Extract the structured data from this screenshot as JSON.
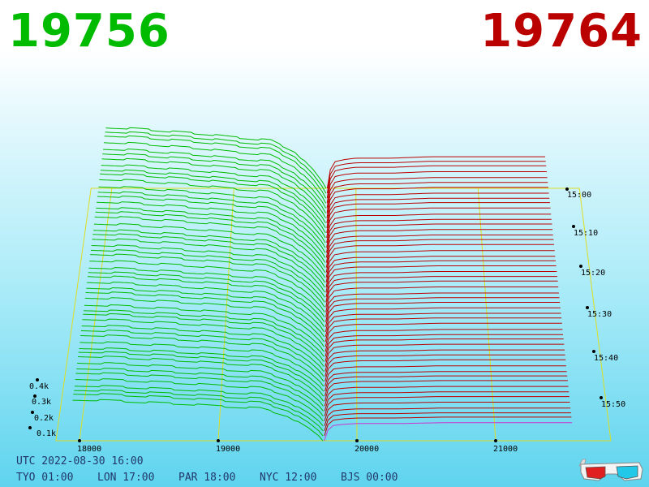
{
  "header": {
    "bid_price": "19756",
    "ask_price": "19764",
    "bid_color": "#00bb00",
    "ask_color": "#bb0000"
  },
  "footer": {
    "utc_label": "UTC 2022-08-30 16:00",
    "zones": [
      "TYO 01:00",
      "LON 17:00",
      "PAR 18:00",
      "NYC 12:00",
      "BJS 00:00"
    ]
  },
  "icon": "3d-glasses-icon",
  "chart_data": {
    "type": "area",
    "title": "",
    "xlabel": "",
    "ylabel": "",
    "x_ticks": [
      18000,
      19000,
      20000,
      21000
    ],
    "x_tick_labels": [
      "18000",
      "19000",
      "20000",
      "21000"
    ],
    "xlim": [
      17950,
      20000
    ],
    "z_ticks": [
      0.1,
      0.2,
      0.3,
      0.4
    ],
    "z_tick_labels": [
      "0.1k",
      "0.2k",
      "0.3k",
      "0.4k"
    ],
    "time_ticks": [
      "15:00",
      "15:10",
      "15:20",
      "15:30",
      "15:40",
      "15:50"
    ],
    "time_range": [
      "14:56",
      "15:58"
    ],
    "mid_price": 19760,
    "series": [
      {
        "side": "bid",
        "color": "#00bb00",
        "price_levels": [
          17950,
          18200,
          18500,
          18800,
          19000,
          19300,
          19500,
          19650,
          19756
        ],
        "cumulative_depth_k": [
          0.42,
          0.41,
          0.39,
          0.37,
          0.35,
          0.33,
          0.25,
          0.12,
          0.0
        ]
      },
      {
        "side": "ask",
        "color": "#bb0000",
        "price_levels": [
          19764,
          19800,
          19900,
          20000,
          20300,
          20600,
          21000,
          21500
        ],
        "cumulative_depth_k": [
          0.0,
          0.18,
          0.2,
          0.21,
          0.21,
          0.22,
          0.22,
          0.22
        ]
      }
    ],
    "grid": true,
    "grid_color": "#dddd22",
    "current_slice_color": "#cc33cc"
  }
}
